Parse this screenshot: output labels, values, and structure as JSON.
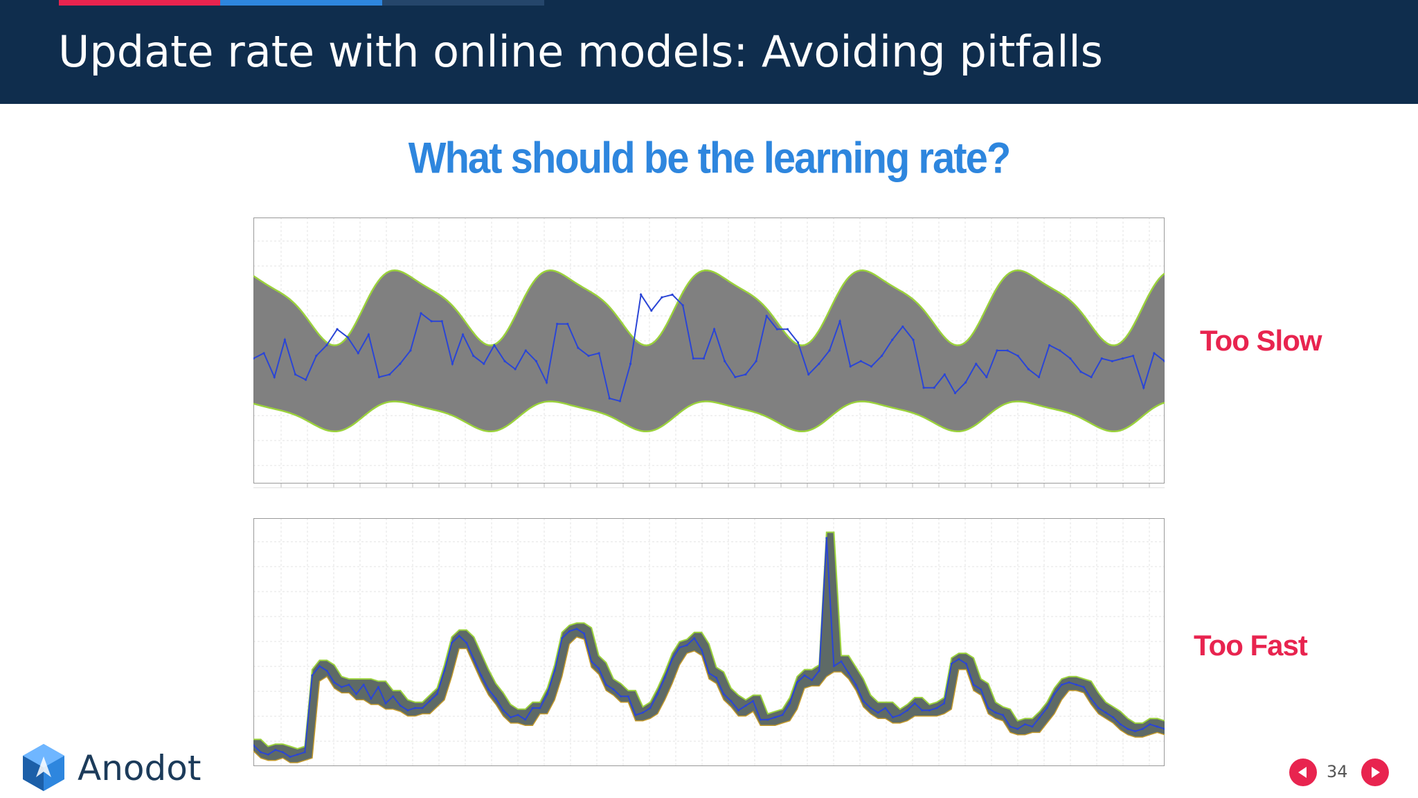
{
  "header": {
    "title": "Update rate with online models: Avoiding pitfalls",
    "accent_colors": [
      "#e8244f",
      "#2e86de",
      "#25466b"
    ]
  },
  "main": {
    "subtitle": "What should be the learning rate?",
    "slow_label": "Too Slow",
    "fast_label": "Too Fast"
  },
  "footer": {
    "logo_text": "Anodot",
    "page_number": "34",
    "prev_icon": "triangle-left-icon",
    "next_icon": "triangle-right-icon"
  },
  "colors": {
    "header_bg": "#0f2d4d",
    "band_gray": "#808080",
    "band_edge": "#9bd23c",
    "series_blue": "#2a45d6",
    "accent_red": "#e8244f",
    "subtitle_blue": "#2e86de"
  },
  "chart_data": [
    {
      "type": "area",
      "title": "",
      "series": [
        {
          "values": [
            47,
            49,
            40,
            54,
            41,
            39,
            48,
            52,
            58,
            55,
            49,
            56,
            40,
            41,
            45,
            50,
            64,
            61,
            61,
            45,
            56,
            48,
            45,
            52,
            46,
            43,
            50,
            46,
            38,
            60,
            60,
            51,
            48,
            49,
            32,
            31,
            45,
            71,
            65,
            70,
            71,
            67,
            47,
            47,
            58,
            46,
            40,
            41,
            46,
            63,
            58,
            58,
            53,
            41,
            45,
            50,
            61,
            44,
            46,
            44,
            48,
            54,
            59,
            54,
            36,
            36,
            41,
            34,
            38,
            45,
            40,
            50,
            50,
            48,
            43,
            40,
            52,
            50,
            47,
            42,
            40,
            47,
            46,
            47,
            48,
            36,
            49,
            46
          ]
        }
      ]
    },
    {
      "type": "area",
      "title": "",
      "series": [
        {
          "values": [
            6,
            3,
            2,
            4,
            3,
            1,
            2,
            3,
            36,
            40,
            38,
            33,
            31,
            32,
            28,
            32,
            26,
            31,
            24,
            27,
            23,
            21,
            22,
            22,
            25,
            28,
            38,
            50,
            53,
            50,
            43,
            36,
            30,
            26,
            21,
            18,
            19,
            17,
            22,
            22,
            28,
            38,
            52,
            55,
            56,
            54,
            42,
            39,
            32,
            30,
            27,
            27,
            19,
            20,
            22,
            28,
            35,
            43,
            48,
            49,
            52,
            47,
            37,
            35,
            28,
            25,
            21,
            23,
            25,
            17,
            17,
            18,
            19,
            24,
            33,
            36,
            34,
            38,
            95,
            40,
            42,
            37,
            32,
            25,
            22,
            20,
            22,
            18,
            19,
            21,
            24,
            21,
            21,
            22,
            24,
            41,
            43,
            41,
            32,
            30,
            22,
            20,
            19,
            14,
            13,
            15,
            14,
            18,
            22,
            28,
            32,
            33,
            32,
            31,
            26,
            22,
            20,
            18,
            15,
            13,
            12,
            13,
            15,
            14,
            13
          ]
        }
      ]
    }
  ]
}
